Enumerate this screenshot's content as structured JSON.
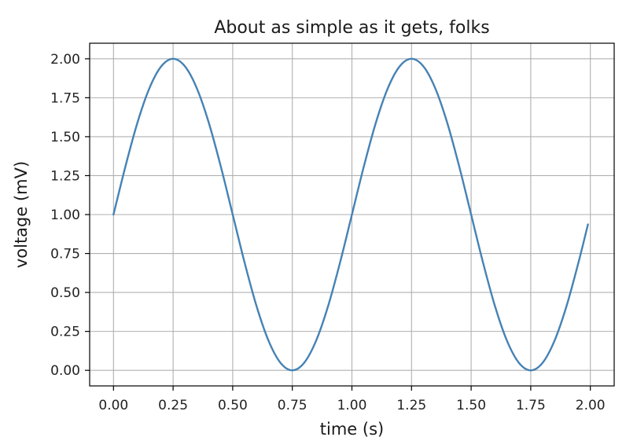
{
  "chart_data": {
    "type": "line",
    "title": "About as simple as it gets, folks",
    "xlabel": "time (s)",
    "ylabel": "voltage (mV)",
    "xlim": [
      -0.1,
      2.1
    ],
    "ylim": [
      -0.1,
      2.1
    ],
    "xticks": [
      0.0,
      0.25,
      0.5,
      0.75,
      1.0,
      1.25,
      1.5,
      1.75,
      2.0
    ],
    "xtick_labels": [
      "0.00",
      "0.25",
      "0.50",
      "0.75",
      "1.00",
      "1.25",
      "1.50",
      "1.75",
      "2.00"
    ],
    "yticks": [
      0.0,
      0.25,
      0.5,
      0.75,
      1.0,
      1.25,
      1.5,
      1.75,
      2.0
    ],
    "ytick_labels": [
      "0.00",
      "0.25",
      "0.50",
      "0.75",
      "1.00",
      "1.25",
      "1.50",
      "1.75",
      "2.00"
    ],
    "grid": true,
    "series": [
      {
        "color": "#4682b4",
        "x": [
          0.0,
          0.05,
          0.1,
          0.15,
          0.2,
          0.25,
          0.3,
          0.35,
          0.4,
          0.45,
          0.5,
          0.55,
          0.6,
          0.65,
          0.7,
          0.75,
          0.8,
          0.85,
          0.9,
          0.95,
          1.0,
          1.05,
          1.1,
          1.15,
          1.2,
          1.25,
          1.3,
          1.35,
          1.4,
          1.45,
          1.5,
          1.55,
          1.6,
          1.65,
          1.7,
          1.75,
          1.8,
          1.85,
          1.9,
          1.95,
          1.99
        ],
        "y": [
          1.0,
          1.309,
          1.588,
          1.809,
          1.951,
          2.0,
          1.951,
          1.809,
          1.588,
          1.309,
          1.0,
          0.691,
          0.412,
          0.191,
          0.049,
          0.0,
          0.049,
          0.191,
          0.412,
          0.691,
          1.0,
          1.309,
          1.588,
          1.809,
          1.951,
          2.0,
          1.951,
          1.809,
          1.588,
          1.309,
          1.0,
          0.691,
          0.412,
          0.191,
          0.049,
          0.0,
          0.049,
          0.191,
          0.412,
          0.691,
          0.937
        ]
      }
    ]
  }
}
